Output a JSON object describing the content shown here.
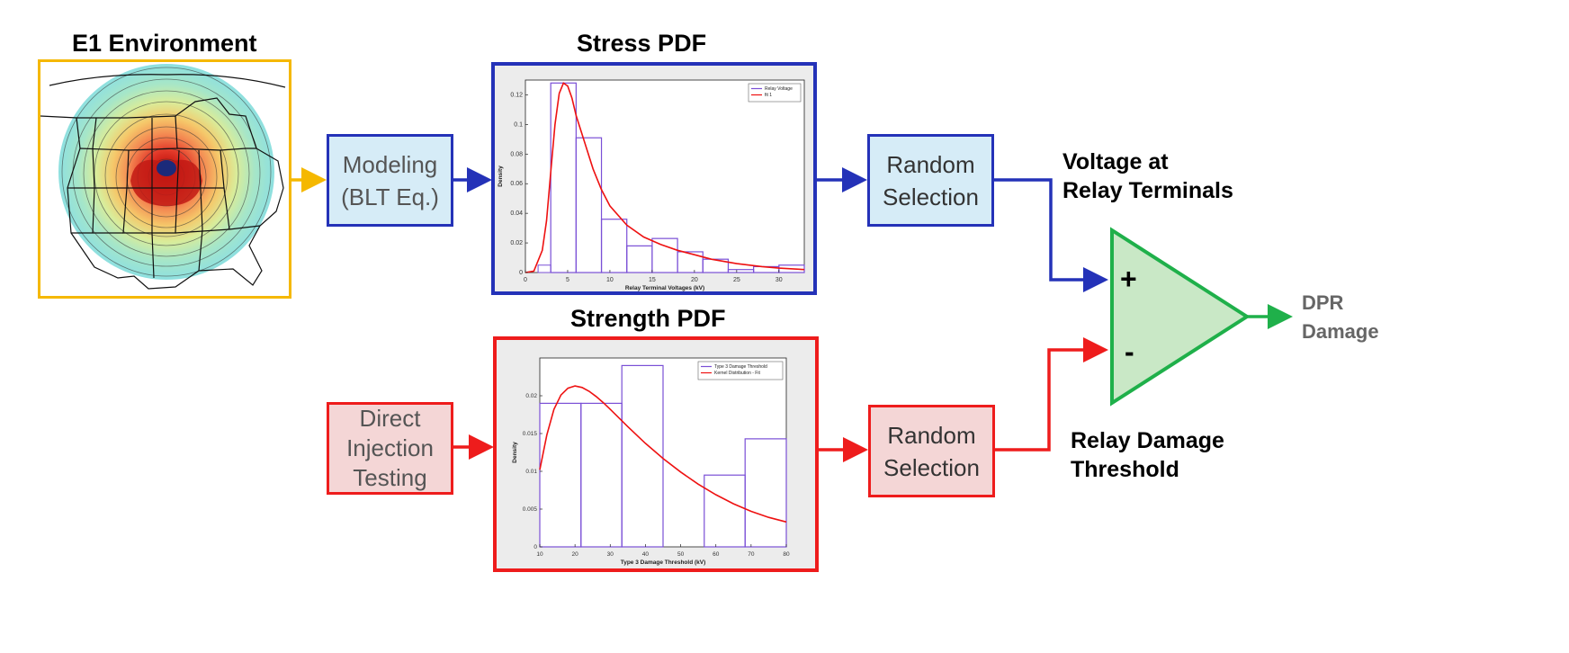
{
  "environment": {
    "title": "E1 Environment"
  },
  "modeling": {
    "line1": "Modeling",
    "line2": "(BLT Eq.)"
  },
  "testing": {
    "line1": "Direct",
    "line2": "Injection",
    "line3": "Testing"
  },
  "random_top": {
    "line1": "Random",
    "line2": "Selection"
  },
  "random_bottom": {
    "line1": "Random",
    "line2": "Selection"
  },
  "voltage_label": {
    "line1": "Voltage at",
    "line2": "Relay Terminals"
  },
  "damage_label": {
    "line1": "Relay Damage",
    "line2": "Threshold"
  },
  "comparator": {
    "plus": "+",
    "minus": "-"
  },
  "output": {
    "line1": "DPR",
    "line2": "Damage"
  },
  "colors": {
    "yellow": "#f5b800",
    "blue": "#2432b8",
    "red": "#ee1c1c",
    "green": "#1fb04a",
    "light_blue": "#d6ecf7",
    "light_red": "#f4d6d6",
    "light_green": "#c9e8c6"
  },
  "stress_chart": {
    "title": "Stress PDF",
    "chart_data": {
      "type": "bar",
      "xlabel": "Relay Terminal Voltages (kV)",
      "ylabel": "Density",
      "xlim": [
        0,
        33
      ],
      "ylim": [
        0,
        0.13
      ],
      "xticks": [
        0,
        5,
        10,
        15,
        20,
        25,
        30
      ],
      "yticks": [
        0,
        0.02,
        0.04,
        0.06,
        0.08,
        0.1,
        0.12
      ],
      "legend": [
        "Relay Voltage",
        "fit 1"
      ],
      "legend_position": "top-right",
      "bin_edges": [
        3,
        6,
        9,
        12,
        15,
        18,
        21,
        24,
        27,
        30,
        33
      ],
      "bin_values": [
        0.128,
        0.091,
        0.036,
        0.018,
        0.023,
        0.014,
        0.009,
        0.002,
        0.004,
        0.005
      ],
      "leading_bar": {
        "x": [
          1.5,
          3
        ],
        "value": 0.005
      },
      "fit_x": [
        0,
        1,
        2,
        2.5,
        3,
        3.5,
        4,
        4.5,
        5,
        5.5,
        6,
        7,
        8,
        9,
        10,
        12,
        14,
        16,
        18,
        20,
        22,
        25,
        28,
        30,
        33
      ],
      "fit_y": [
        0,
        0.001,
        0.015,
        0.035,
        0.068,
        0.1,
        0.121,
        0.128,
        0.126,
        0.118,
        0.106,
        0.088,
        0.07,
        0.056,
        0.045,
        0.032,
        0.024,
        0.019,
        0.015,
        0.012,
        0.009,
        0.006,
        0.004,
        0.003,
        0.002
      ]
    }
  },
  "strength_chart": {
    "title": "Strength PDF",
    "chart_data": {
      "type": "bar",
      "xlabel": "Type 3 Damage Threshold (kV)",
      "ylabel": "Density",
      "xlim": [
        10,
        80
      ],
      "ylim": [
        0,
        0.025
      ],
      "xticks": [
        10,
        20,
        30,
        40,
        50,
        60,
        70,
        80
      ],
      "yticks": [
        0,
        0.005,
        0.01,
        0.015,
        0.02
      ],
      "legend": [
        "Type 3 Damage Threshold",
        "Kernel Distribution - Fit"
      ],
      "legend_position": "top-right",
      "bin_edges": [
        10,
        21.7,
        33.3,
        45,
        56.7,
        68.3,
        80
      ],
      "bin_values": [
        0.019,
        0.019,
        0.024,
        0,
        0.0095,
        0.0143
      ],
      "fit_x": [
        10,
        12,
        14,
        16,
        18,
        20,
        22,
        24,
        26,
        28,
        30,
        35,
        40,
        45,
        50,
        55,
        60,
        65,
        70,
        75,
        80
      ],
      "fit_y": [
        0.0102,
        0.0148,
        0.0182,
        0.0201,
        0.021,
        0.0213,
        0.0211,
        0.0206,
        0.0199,
        0.0191,
        0.0182,
        0.0159,
        0.0137,
        0.0117,
        0.0099,
        0.0083,
        0.0069,
        0.0057,
        0.0047,
        0.0039,
        0.0033
      ]
    }
  }
}
